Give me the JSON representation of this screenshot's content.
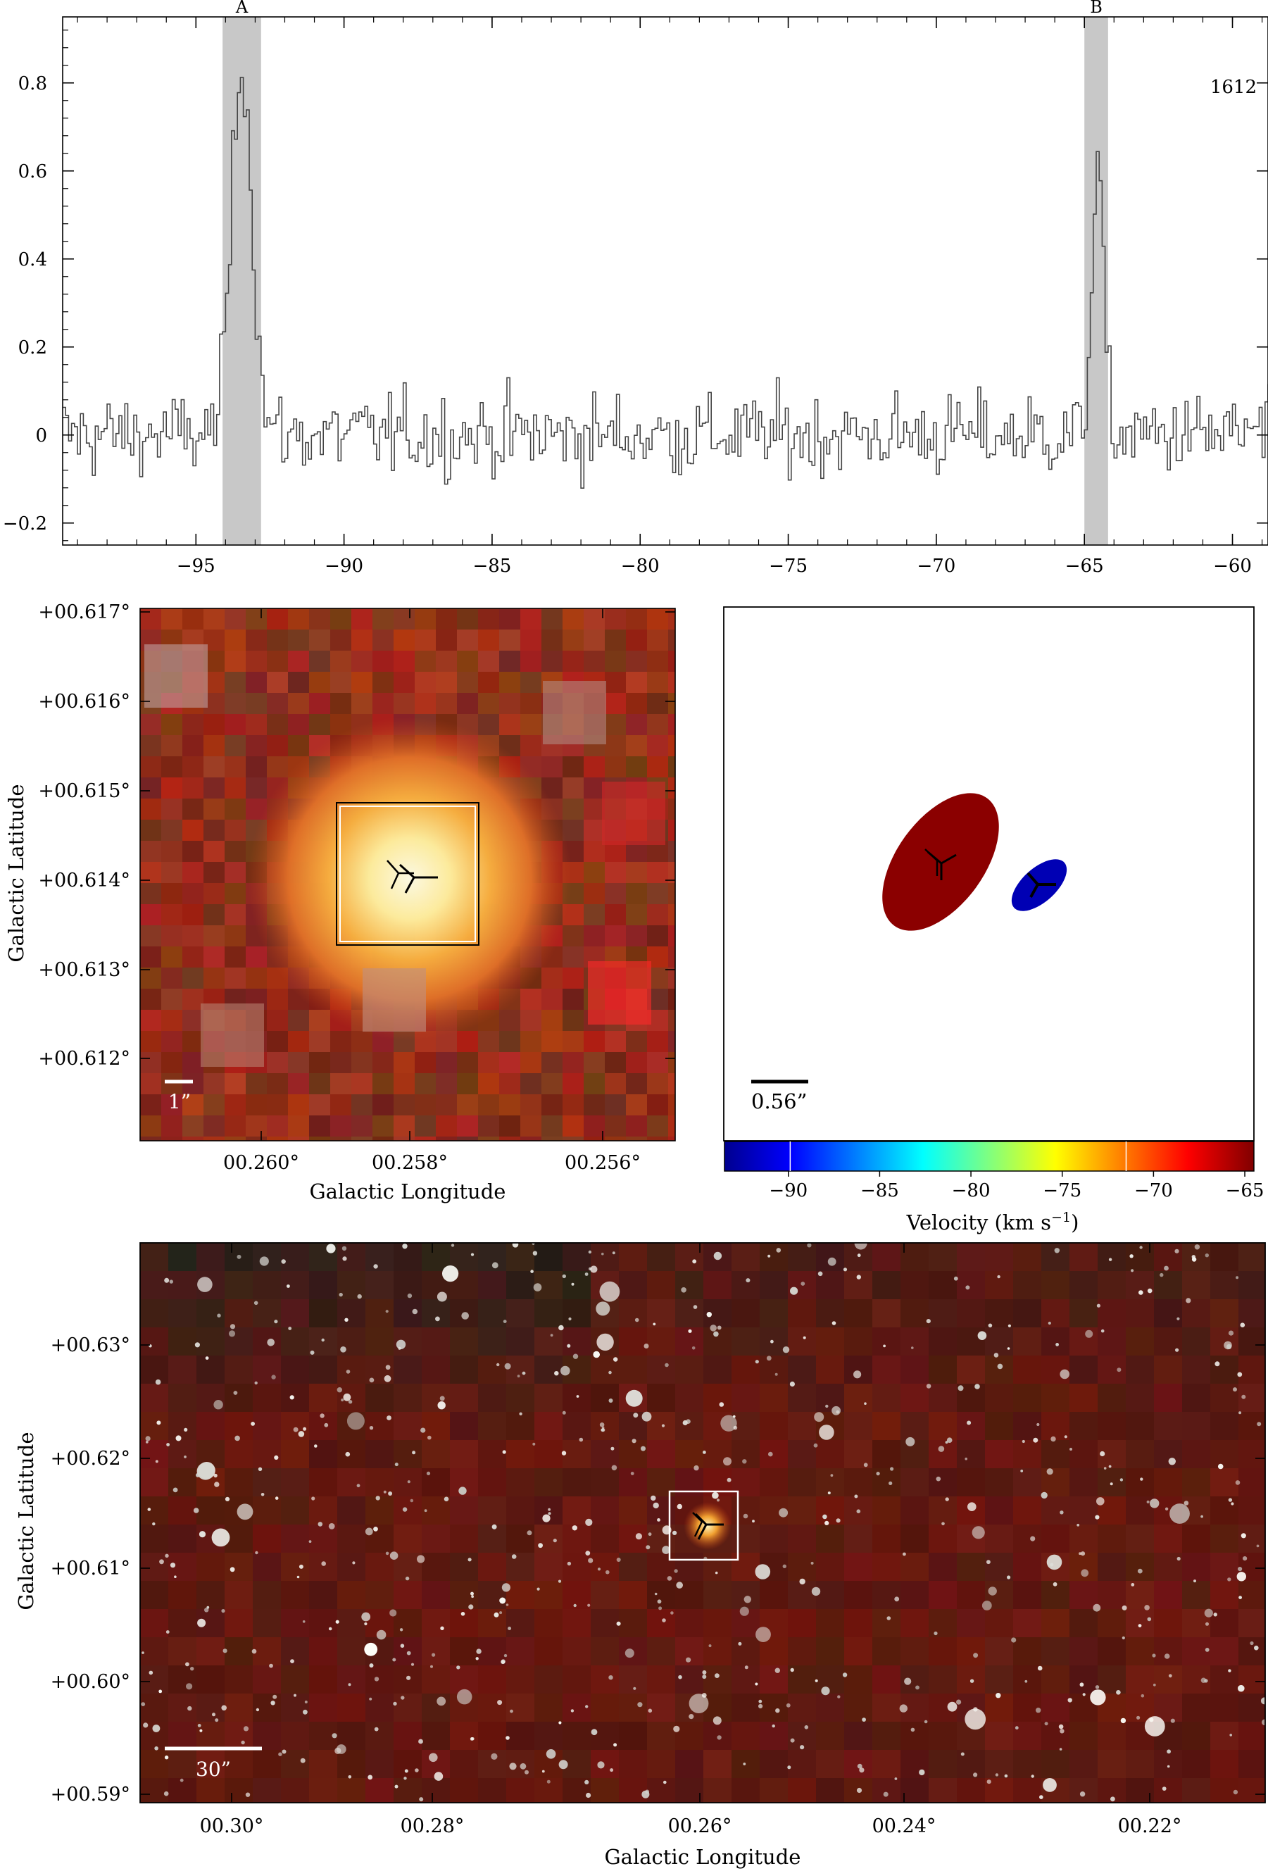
{
  "chart_data": [
    {
      "type": "line",
      "panel": "spectrum",
      "title": "",
      "xlabel": "",
      "ylabel": "",
      "annotation": "1612",
      "xlim": [
        -99.5,
        -58.8
      ],
      "ylim": [
        -0.25,
        0.95
      ],
      "xticks": [
        -95,
        -90,
        -85,
        -80,
        -75,
        -70,
        -65,
        -60
      ],
      "xtick_labels": [
        "−95",
        "−90",
        "−85",
        "−80",
        "−75",
        "−70",
        "−65",
        "−60"
      ],
      "yticks": [
        -0.2,
        0,
        0.2,
        0.4,
        0.6,
        0.8
      ],
      "ytick_labels": [
        "−0.2",
        "0",
        "0.2",
        "0.4",
        "0.6",
        "0.8"
      ],
      "regions": [
        {
          "label": "A",
          "x0": -94.1,
          "x1": -92.8
        },
        {
          "label": "B",
          "x0": -65.0,
          "x1": -64.2
        }
      ],
      "peaks": [
        {
          "name": "A",
          "center": -93.5,
          "width": 0.35,
          "amplitude": 0.85
        },
        {
          "name": "B",
          "center": -64.6,
          "width": 0.2,
          "amplitude": 0.6
        }
      ],
      "noise_rms": 0.08,
      "channel_width": 0.1
    },
    {
      "type": "heatmap",
      "panel": "zoom-image",
      "xlabel": "Galactic Longitude",
      "ylabel": "Galactic Latitude",
      "xtick_labels": [
        "00.260°",
        "00.258°",
        "00.256°"
      ],
      "ytick_labels": [
        "+00.617°",
        "+00.616°",
        "+00.615°",
        "+00.614°",
        "+00.613°",
        "+00.612°"
      ],
      "scalebar_label": "1”"
    },
    {
      "type": "scatter",
      "panel": "maser-spots",
      "colorbar_label": "Velocity (km s",
      "colorbar_label_sup": "−1",
      "colorbar_label_end": ")",
      "colorbar_range": [
        -93.5,
        -64.5
      ],
      "colorbar_ticks": [
        -90,
        -85,
        -80,
        -75,
        -70,
        -65
      ],
      "colorbar_tick_labels": [
        "−90",
        "−85",
        "−80",
        "−75",
        "−70",
        "−65"
      ],
      "colorbar_markers": [
        -89.9,
        -71.5
      ],
      "scalebar_label": "0.56”",
      "spots": [
        {
          "name": "red-component",
          "velocity": -64.6,
          "color": "#8b0000"
        },
        {
          "name": "blue-component",
          "velocity": -93.5,
          "color": "#0000b4"
        }
      ]
    },
    {
      "type": "heatmap",
      "panel": "wide-field-image",
      "xlabel": "Galactic Longitude",
      "ylabel": "Galactic Latitude",
      "xtick_labels": [
        "00.30°",
        "00.28°",
        "00.26°",
        "00.24°",
        "00.22°"
      ],
      "ytick_labels": [
        "+00.63°",
        "+00.62°",
        "+00.61°",
        "+00.60°",
        "+00.59°"
      ],
      "scalebar_label": "30”"
    }
  ],
  "colors": {
    "region_shade": "#c8c8c8",
    "spectrum_line": "#444444",
    "red_spot": "#8b0000",
    "blue_spot": "#0000b4",
    "image_background": "#5a1208"
  }
}
